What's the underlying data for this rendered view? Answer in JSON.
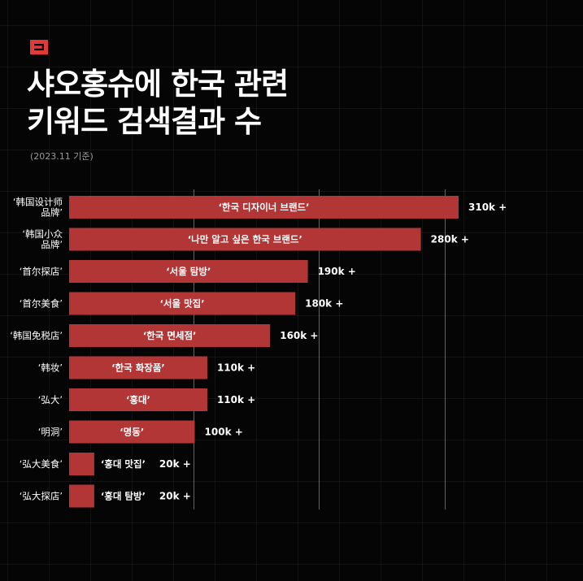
{
  "brand": {
    "logo_icon": "brand-square-icon",
    "accent": "#e03a3a"
  },
  "header": {
    "title_line1": "샤오홍슈에 한국 관련",
    "title_line2": "키워드 검색결과 수",
    "subtitle": "(2023.11 기준)"
  },
  "chart_data": {
    "type": "bar",
    "orientation": "horizontal",
    "title": "샤오홍슈에 한국 관련 키워드 검색결과 수",
    "subtitle": "(2023.11 기준)",
    "bar_color": "#b23636",
    "xlim": [
      0,
      310
    ],
    "grid": true,
    "categories": [
      [
        "‘韩国设计师",
        "品牌’"
      ],
      [
        "‘韩国小众",
        "品牌’"
      ],
      [
        "‘首尔探店’"
      ],
      [
        "‘首尔美食’"
      ],
      [
        "‘韩国免税店’"
      ],
      [
        "‘韩妆’"
      ],
      [
        "‘弘大’"
      ],
      [
        "‘明洞’"
      ],
      [
        "‘弘大美食’"
      ],
      [
        "‘弘大探店’"
      ]
    ],
    "translations": [
      "‘한국 디자이너 브랜드’",
      "‘나만 알고 싶은 한국 브랜드’",
      "‘서울 탐방’",
      "‘서울 맛집’",
      "‘한국 면세점’",
      "‘한국 화장품’",
      "‘홍대’",
      "‘명동’",
      "‘홍대 맛집’",
      "‘홍대 탐방’"
    ],
    "values": [
      310,
      280,
      190,
      180,
      160,
      110,
      110,
      100,
      20,
      20
    ],
    "value_labels": [
      "310k +",
      "280k +",
      "190k +",
      "180k +",
      "160k +",
      "110k +",
      "110k +",
      "100k +",
      "20k +",
      "20k +"
    ]
  }
}
